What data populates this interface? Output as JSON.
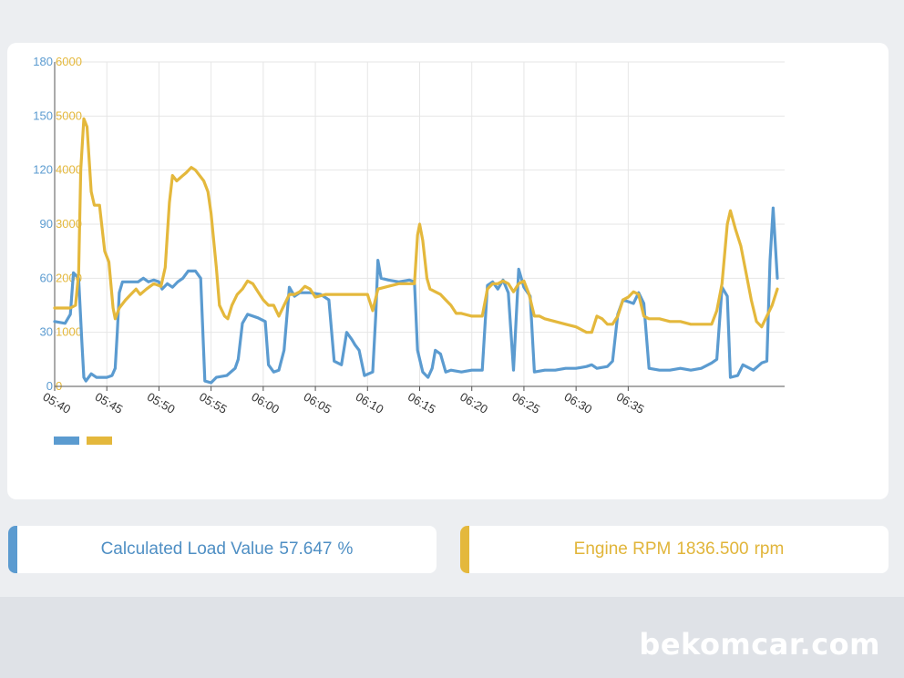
{
  "chart_data": {
    "type": "line",
    "title": "",
    "xlabel": "",
    "ylabel": "",
    "x_ticks": [
      "05:40",
      "05:45",
      "05:50",
      "05:55",
      "06:00",
      "06:05",
      "06:10",
      "06:15",
      "06:20",
      "06:25",
      "06:30",
      "06:35"
    ],
    "x_range_min": [
      0,
      61
    ],
    "y_left": {
      "ticks": [
        "0",
        "30",
        "60",
        "90",
        "120",
        "150",
        "180"
      ],
      "range": [
        0,
        180
      ],
      "color": "#5b9bd0"
    },
    "y_right": {
      "ticks": [
        "0",
        "1000",
        "2000",
        "3000",
        "4000",
        "5000",
        "6000"
      ],
      "range": [
        0,
        6000
      ],
      "color": "#e4b83c"
    },
    "grid": true,
    "legend": "bottom-left",
    "series": [
      {
        "axis": "left",
        "color": "#5b9bd0",
        "points": [
          [
            0,
            36
          ],
          [
            1,
            35
          ],
          [
            1.5,
            40
          ],
          [
            1.8,
            63
          ],
          [
            2.3,
            60
          ],
          [
            2.6,
            25
          ],
          [
            2.8,
            5
          ],
          [
            3.0,
            3
          ],
          [
            3.5,
            7
          ],
          [
            4,
            5
          ],
          [
            5,
            5
          ],
          [
            5.5,
            6
          ],
          [
            5.8,
            10
          ],
          [
            6.0,
            30
          ],
          [
            6.2,
            52
          ],
          [
            6.5,
            58
          ],
          [
            7.5,
            58
          ],
          [
            8,
            58
          ],
          [
            8.5,
            60
          ],
          [
            9,
            58
          ],
          [
            9.5,
            59
          ],
          [
            10.0,
            58
          ],
          [
            10.3,
            54
          ],
          [
            10.8,
            57
          ],
          [
            11.3,
            55
          ],
          [
            11.8,
            58
          ],
          [
            12.3,
            60
          ],
          [
            12.8,
            64
          ],
          [
            13.5,
            64
          ],
          [
            14.0,
            60
          ],
          [
            14.4,
            3
          ],
          [
            15,
            2
          ],
          [
            15.5,
            5
          ],
          [
            16.5,
            6
          ],
          [
            17.3,
            10
          ],
          [
            17.6,
            15
          ],
          [
            18,
            35
          ],
          [
            18.5,
            40
          ],
          [
            19.5,
            38
          ],
          [
            20.2,
            36
          ],
          [
            20.5,
            12
          ],
          [
            21,
            8
          ],
          [
            21.5,
            9
          ],
          [
            22,
            20
          ],
          [
            22.5,
            55
          ],
          [
            23,
            50
          ],
          [
            23.5,
            52
          ],
          [
            24.5,
            52
          ],
          [
            25.5,
            51
          ],
          [
            26.3,
            48
          ],
          [
            26.8,
            14
          ],
          [
            27.5,
            12
          ],
          [
            28,
            30
          ],
          [
            28.5,
            26
          ],
          [
            28.8,
            23
          ],
          [
            29.2,
            20
          ],
          [
            29.7,
            6
          ],
          [
            30.5,
            8
          ],
          [
            30.8,
            40
          ],
          [
            31,
            70
          ],
          [
            31.3,
            60
          ],
          [
            32,
            59
          ],
          [
            33,
            58
          ],
          [
            34,
            59
          ],
          [
            34.5,
            58
          ],
          [
            34.8,
            20
          ],
          [
            35.3,
            8
          ],
          [
            35.8,
            5
          ],
          [
            36.2,
            10
          ],
          [
            36.5,
            20
          ],
          [
            37,
            18
          ],
          [
            37.5,
            8
          ],
          [
            38,
            9
          ],
          [
            39,
            8
          ],
          [
            40,
            9
          ],
          [
            41,
            9
          ],
          [
            41.5,
            56
          ],
          [
            42,
            58
          ],
          [
            42.5,
            54
          ],
          [
            43,
            59
          ],
          [
            43.5,
            52
          ],
          [
            44,
            9
          ],
          [
            44.5,
            65
          ],
          [
            45,
            55
          ],
          [
            45.6,
            50
          ],
          [
            46,
            8
          ],
          [
            47,
            9
          ],
          [
            48,
            9
          ],
          [
            49,
            10
          ],
          [
            50,
            10
          ],
          [
            51,
            11
          ],
          [
            51.5,
            12
          ],
          [
            52,
            10
          ],
          [
            53,
            11
          ],
          [
            53.5,
            14
          ],
          [
            54,
            40
          ],
          [
            54.5,
            48
          ],
          [
            55,
            47
          ],
          [
            55.5,
            46
          ],
          [
            56,
            52
          ],
          [
            56.5,
            46
          ],
          [
            57,
            10
          ],
          [
            58,
            9
          ],
          [
            59,
            9
          ],
          [
            60,
            10
          ],
          [
            61,
            9
          ],
          [
            62,
            10
          ],
          [
            63,
            13
          ],
          [
            63.5,
            15
          ],
          [
            64,
            55
          ],
          [
            64.5,
            50
          ],
          [
            64.8,
            5
          ],
          [
            65.5,
            6
          ],
          [
            66,
            12
          ],
          [
            67,
            9
          ],
          [
            67.8,
            13
          ],
          [
            68.3,
            14
          ],
          [
            68.6,
            70
          ],
          [
            68.9,
            99
          ],
          [
            69.3,
            60
          ]
        ]
      },
      {
        "axis": "right",
        "color": "#e4b83c",
        "points": [
          [
            0,
            1450
          ],
          [
            1,
            1450
          ],
          [
            1.5,
            1450
          ],
          [
            2,
            1500
          ],
          [
            2.3,
            2100
          ],
          [
            2.5,
            4000
          ],
          [
            2.8,
            4950
          ],
          [
            3.1,
            4800
          ],
          [
            3.5,
            3600
          ],
          [
            3.8,
            3350
          ],
          [
            4.3,
            3350
          ],
          [
            4.8,
            2500
          ],
          [
            5.2,
            2300
          ],
          [
            5.6,
            1450
          ],
          [
            5.8,
            1250
          ],
          [
            6.2,
            1450
          ],
          [
            6.8,
            1600
          ],
          [
            7.3,
            1700
          ],
          [
            7.8,
            1800
          ],
          [
            8.2,
            1700
          ],
          [
            8.8,
            1800
          ],
          [
            9.5,
            1900
          ],
          [
            10.2,
            1850
          ],
          [
            10.6,
            2200
          ],
          [
            11.0,
            3400
          ],
          [
            11.3,
            3900
          ],
          [
            11.7,
            3800
          ],
          [
            12.3,
            3900
          ],
          [
            12.6,
            3950
          ],
          [
            13.1,
            4050
          ],
          [
            13.5,
            4000
          ],
          [
            14.3,
            3800
          ],
          [
            14.7,
            3600
          ],
          [
            15,
            3200
          ],
          [
            15.5,
            2200
          ],
          [
            15.8,
            1500
          ],
          [
            16.3,
            1300
          ],
          [
            16.6,
            1250
          ],
          [
            17,
            1500
          ],
          [
            17.5,
            1700
          ],
          [
            18,
            1800
          ],
          [
            18.5,
            1950
          ],
          [
            19,
            1900
          ],
          [
            19.5,
            1750
          ],
          [
            20,
            1600
          ],
          [
            20.5,
            1500
          ],
          [
            21,
            1500
          ],
          [
            21.5,
            1300
          ],
          [
            22,
            1500
          ],
          [
            22.5,
            1700
          ],
          [
            23,
            1700
          ],
          [
            23.5,
            1750
          ],
          [
            24,
            1850
          ],
          [
            24.5,
            1800
          ],
          [
            25,
            1650
          ],
          [
            26,
            1700
          ],
          [
            27,
            1700
          ],
          [
            28,
            1700
          ],
          [
            29,
            1700
          ],
          [
            30,
            1700
          ],
          [
            30.5,
            1400
          ],
          [
            31,
            1800
          ],
          [
            32,
            1850
          ],
          [
            33,
            1900
          ],
          [
            34,
            1900
          ],
          [
            34.5,
            1900
          ],
          [
            34.8,
            2800
          ],
          [
            35,
            3000
          ],
          [
            35.3,
            2700
          ],
          [
            35.7,
            2000
          ],
          [
            36,
            1800
          ],
          [
            36.5,
            1750
          ],
          [
            37,
            1700
          ],
          [
            37.5,
            1600
          ],
          [
            38,
            1500
          ],
          [
            38.5,
            1350
          ],
          [
            39,
            1350
          ],
          [
            40,
            1300
          ],
          [
            41,
            1300
          ],
          [
            41.5,
            1800
          ],
          [
            42,
            1900
          ],
          [
            42.5,
            1900
          ],
          [
            43,
            1950
          ],
          [
            43.5,
            1900
          ],
          [
            44,
            1750
          ],
          [
            44.5,
            1900
          ],
          [
            45,
            1950
          ],
          [
            45.5,
            1700
          ],
          [
            46,
            1300
          ],
          [
            46.5,
            1300
          ],
          [
            47,
            1250
          ],
          [
            48,
            1200
          ],
          [
            49,
            1150
          ],
          [
            50,
            1100
          ],
          [
            51,
            1000
          ],
          [
            51.5,
            1000
          ],
          [
            52,
            1300
          ],
          [
            52.5,
            1250
          ],
          [
            53,
            1150
          ],
          [
            53.5,
            1150
          ],
          [
            54,
            1300
          ],
          [
            54.5,
            1600
          ],
          [
            55,
            1650
          ],
          [
            55.5,
            1750
          ],
          [
            56,
            1700
          ],
          [
            56.5,
            1300
          ],
          [
            57,
            1250
          ],
          [
            58,
            1250
          ],
          [
            59,
            1200
          ],
          [
            60,
            1200
          ],
          [
            61,
            1150
          ],
          [
            62,
            1150
          ],
          [
            63,
            1150
          ],
          [
            63.5,
            1400
          ],
          [
            64,
            1900
          ],
          [
            64.5,
            3000
          ],
          [
            64.8,
            3250
          ],
          [
            65.3,
            2900
          ],
          [
            65.8,
            2600
          ],
          [
            66.3,
            2100
          ],
          [
            66.8,
            1600
          ],
          [
            67.3,
            1200
          ],
          [
            67.8,
            1100
          ],
          [
            68.3,
            1300
          ],
          [
            68.8,
            1500
          ],
          [
            69.3,
            1800
          ]
        ]
      }
    ]
  },
  "cards": {
    "load_label": "Calculated Load Value",
    "load_value": "57.647",
    "load_unit": "%",
    "rpm_label": "Engine RPM",
    "rpm_value": "1836.500",
    "rpm_unit": "rpm"
  },
  "watermark": "bekomcar.com"
}
